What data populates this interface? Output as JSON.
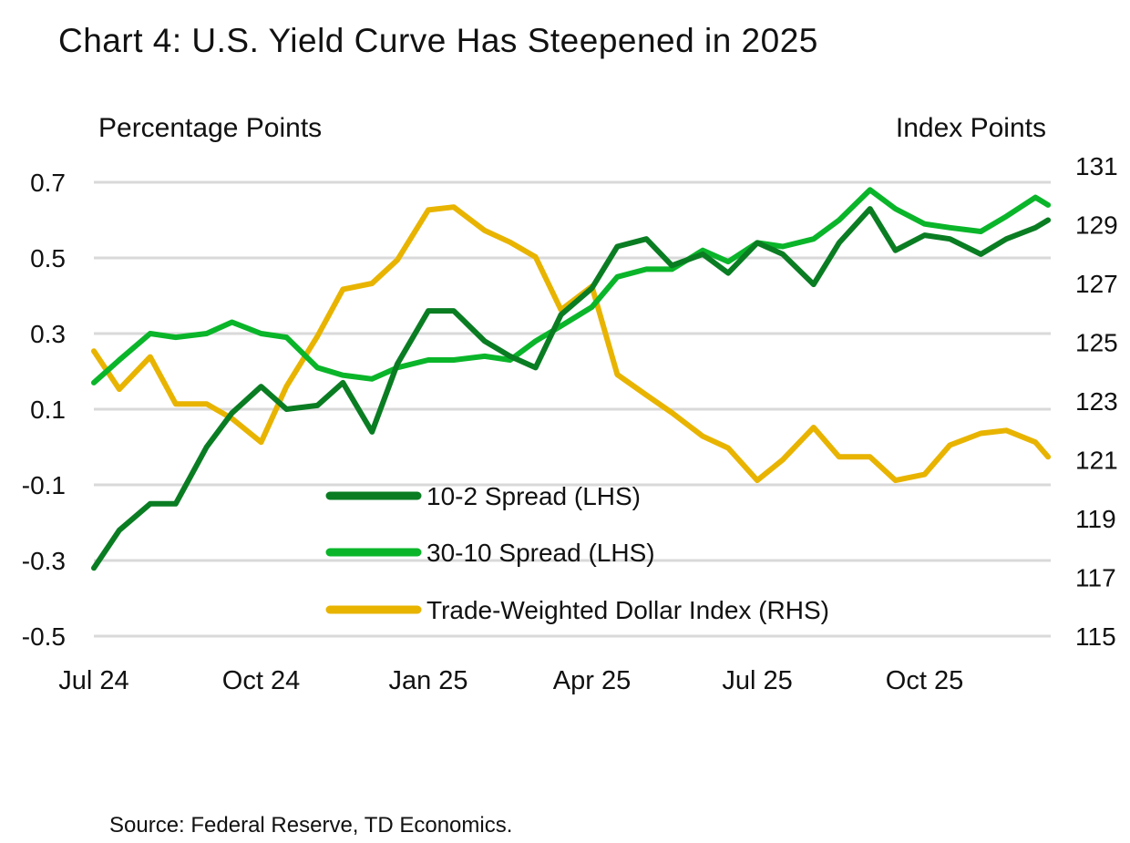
{
  "chart_data": {
    "type": "line",
    "title": "Chart 4: U.S. Yield Curve Has Steepened in 2025",
    "ylabel_left": "Percentage Points",
    "ylabel_right": "Index Points",
    "source": "Source: Federal Reserve, TD Economics.",
    "ylim_left": [
      -0.5,
      0.7
    ],
    "yticks_left": [
      "0.7",
      "0.5",
      "0.3",
      "0.1",
      "-0.1",
      "-0.3",
      "-0.5"
    ],
    "ylim_right": [
      115,
      131
    ],
    "yticks_right": [
      "131",
      "129",
      "127",
      "125",
      "123",
      "121",
      "119",
      "117",
      "115"
    ],
    "xlim": [
      "2024-07-01",
      "2025-12-10"
    ],
    "xticks": [
      {
        "date": "2024-07-01",
        "label": "Jul 24"
      },
      {
        "date": "2024-10-01",
        "label": "Oct 24"
      },
      {
        "date": "2025-01-01",
        "label": "Jan 25"
      },
      {
        "date": "2025-04-01",
        "label": "Apr 25"
      },
      {
        "date": "2025-07-01",
        "label": "Jul 25"
      },
      {
        "date": "2025-10-01",
        "label": "Oct 25"
      }
    ],
    "grid": true,
    "legend_position": "center-left",
    "x": [
      "2024-07-01",
      "2024-07-15",
      "2024-08-01",
      "2024-08-15",
      "2024-09-01",
      "2024-09-15",
      "2024-10-01",
      "2024-10-15",
      "2024-11-01",
      "2024-11-15",
      "2024-12-01",
      "2024-12-15",
      "2025-01-01",
      "2025-01-15",
      "2025-02-01",
      "2025-02-15",
      "2025-03-01",
      "2025-03-15",
      "2025-04-01",
      "2025-04-15",
      "2025-05-01",
      "2025-05-15",
      "2025-06-01",
      "2025-06-15",
      "2025-07-01",
      "2025-07-15",
      "2025-08-01",
      "2025-08-15",
      "2025-09-01",
      "2025-09-15",
      "2025-10-01",
      "2025-10-15",
      "2025-11-01",
      "2025-11-15",
      "2025-12-01",
      "2025-12-08"
    ],
    "series": [
      {
        "name": "10-2 Spread (LHS)",
        "axis": "left",
        "color": "#0a7d23",
        "values": [
          -0.32,
          -0.22,
          -0.15,
          -0.15,
          0.0,
          0.09,
          0.16,
          0.1,
          0.11,
          0.17,
          0.04,
          0.22,
          0.36,
          0.36,
          0.28,
          0.24,
          0.21,
          0.35,
          0.42,
          0.53,
          0.55,
          0.48,
          0.51,
          0.46,
          0.54,
          0.51,
          0.43,
          0.54,
          0.63,
          0.52,
          0.56,
          0.55,
          0.51,
          0.55,
          0.58,
          0.6
        ]
      },
      {
        "name": "30-10 Spread (LHS)",
        "axis": "left",
        "color": "#0ab52a",
        "values": [
          0.17,
          0.23,
          0.3,
          0.29,
          0.3,
          0.33,
          0.3,
          0.29,
          0.21,
          0.19,
          0.18,
          0.21,
          0.23,
          0.23,
          0.24,
          0.23,
          0.28,
          0.32,
          0.37,
          0.45,
          0.47,
          0.47,
          0.52,
          0.49,
          0.54,
          0.53,
          0.55,
          0.6,
          0.68,
          0.63,
          0.59,
          0.58,
          0.57,
          0.61,
          0.66,
          0.64
        ]
      },
      {
        "name": "Trade-Weighted Dollar Index (RHS)",
        "axis": "right",
        "color": "#e8b400",
        "values": [
          124.7,
          123.4,
          124.5,
          122.9,
          122.9,
          122.4,
          121.6,
          123.5,
          125.2,
          126.8,
          127.0,
          127.8,
          129.5,
          129.6,
          128.8,
          128.4,
          127.9,
          126.1,
          126.9,
          123.9,
          123.2,
          122.6,
          121.8,
          121.4,
          120.3,
          121.0,
          122.1,
          121.1,
          121.1,
          120.3,
          120.5,
          121.5,
          121.9,
          122.0,
          121.6,
          121.1
        ]
      }
    ]
  }
}
